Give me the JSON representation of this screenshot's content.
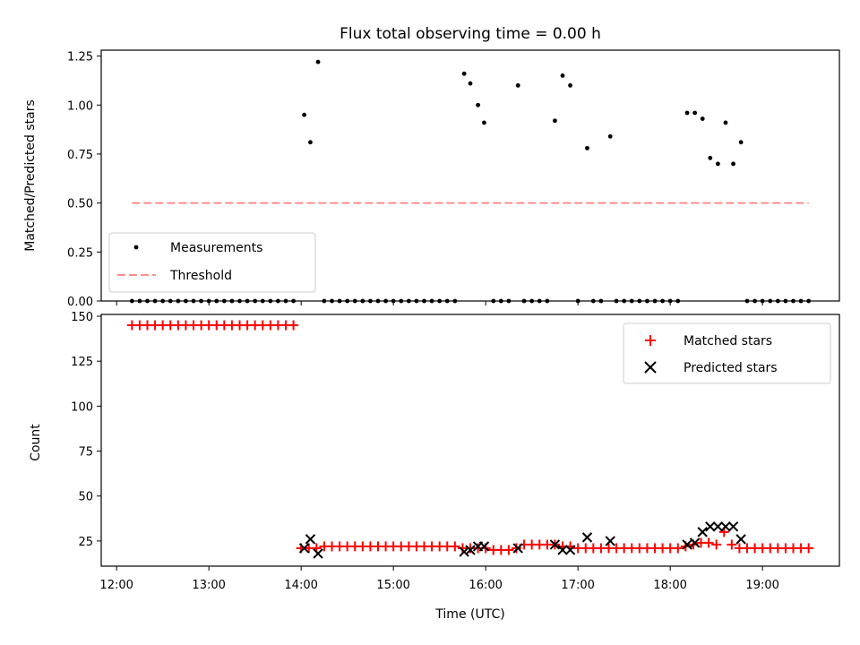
{
  "chart_data": {
    "type": "scatter",
    "title": "Flux total observing time = 0.00 h",
    "xlabel": "Time (UTC)",
    "x_tick_labels": [
      "12:00",
      "13:00",
      "14:00",
      "15:00",
      "16:00",
      "17:00",
      "18:00",
      "19:00"
    ],
    "xlim": [
      "11:50",
      "19:50"
    ],
    "top_panel": {
      "ylabel": "Matched/Predicted stars",
      "ylim": [
        0,
        1.28
      ],
      "y_ticks": [
        "0.00",
        "0.25",
        "0.50",
        "0.75",
        "1.00",
        "1.25"
      ],
      "legend_position": "lower-left",
      "threshold": {
        "name": "Threshold",
        "value": 0.5,
        "x_range": [
          "12:10",
          "19:30"
        ],
        "color": "#ff7f7f"
      },
      "measurements_name": "Measurements",
      "measurements": [
        [
          "12:10",
          0
        ],
        [
          "12:15",
          0
        ],
        [
          "12:20",
          0
        ],
        [
          "12:25",
          0
        ],
        [
          "12:30",
          0
        ],
        [
          "12:35",
          0
        ],
        [
          "12:40",
          0
        ],
        [
          "12:45",
          0
        ],
        [
          "12:50",
          0
        ],
        [
          "12:55",
          0
        ],
        [
          "13:00",
          0
        ],
        [
          "13:05",
          0
        ],
        [
          "13:10",
          0
        ],
        [
          "13:15",
          0
        ],
        [
          "13:20",
          0
        ],
        [
          "13:25",
          0
        ],
        [
          "13:30",
          0
        ],
        [
          "13:35",
          0
        ],
        [
          "13:40",
          0
        ],
        [
          "13:45",
          0
        ],
        [
          "13:50",
          0
        ],
        [
          "13:55",
          0
        ],
        [
          "14:02",
          0.95
        ],
        [
          "14:06",
          0.81
        ],
        [
          "14:11",
          1.22
        ],
        [
          "14:15",
          0
        ],
        [
          "14:20",
          0
        ],
        [
          "14:25",
          0
        ],
        [
          "14:30",
          0
        ],
        [
          "14:35",
          0
        ],
        [
          "14:40",
          0
        ],
        [
          "14:45",
          0
        ],
        [
          "14:50",
          0
        ],
        [
          "14:55",
          0
        ],
        [
          "15:00",
          0
        ],
        [
          "15:05",
          0
        ],
        [
          "15:10",
          0
        ],
        [
          "15:15",
          0
        ],
        [
          "15:20",
          0
        ],
        [
          "15:25",
          0
        ],
        [
          "15:30",
          0
        ],
        [
          "15:35",
          0
        ],
        [
          "15:40",
          0
        ],
        [
          "15:46",
          1.16
        ],
        [
          "15:50",
          1.11
        ],
        [
          "15:55",
          1.0
        ],
        [
          "15:59",
          0.91
        ],
        [
          "16:05",
          0
        ],
        [
          "16:10",
          0
        ],
        [
          "16:15",
          0
        ],
        [
          "16:21",
          1.1
        ],
        [
          "16:25",
          0
        ],
        [
          "16:30",
          0
        ],
        [
          "16:35",
          0
        ],
        [
          "16:40",
          0
        ],
        [
          "16:45",
          0.92
        ],
        [
          "16:50",
          1.15
        ],
        [
          "16:55",
          1.1
        ],
        [
          "17:00",
          0
        ],
        [
          "17:06",
          0.78
        ],
        [
          "17:10",
          0
        ],
        [
          "17:15",
          0
        ],
        [
          "17:21",
          0.84
        ],
        [
          "17:25",
          0
        ],
        [
          "17:30",
          0
        ],
        [
          "17:35",
          0
        ],
        [
          "17:40",
          0
        ],
        [
          "17:45",
          0
        ],
        [
          "17:50",
          0
        ],
        [
          "17:55",
          0
        ],
        [
          "18:00",
          0
        ],
        [
          "18:05",
          0
        ],
        [
          "18:11",
          0.96
        ],
        [
          "18:16",
          0.96
        ],
        [
          "18:21",
          0.93
        ],
        [
          "18:26",
          0.73
        ],
        [
          "18:31",
          0.7
        ],
        [
          "18:36",
          0.91
        ],
        [
          "18:41",
          0.7
        ],
        [
          "18:46",
          0.81
        ],
        [
          "18:50",
          0
        ],
        [
          "18:55",
          0
        ],
        [
          "19:00",
          0
        ],
        [
          "19:05",
          0
        ],
        [
          "19:10",
          0
        ],
        [
          "19:15",
          0
        ],
        [
          "19:20",
          0
        ],
        [
          "19:25",
          0
        ],
        [
          "19:30",
          0
        ]
      ]
    },
    "bottom_panel": {
      "ylabel": "Count",
      "ylim": [
        11,
        151
      ],
      "y_ticks": [
        "25",
        "50",
        "75",
        "100",
        "125",
        "150"
      ],
      "legend_position": "upper-right",
      "series": [
        {
          "name": "Matched stars",
          "marker": "plus",
          "color": "#ff0000",
          "points": [
            [
              "12:10",
              145
            ],
            [
              "12:15",
              145
            ],
            [
              "12:20",
              145
            ],
            [
              "12:25",
              145
            ],
            [
              "12:30",
              145
            ],
            [
              "12:35",
              145
            ],
            [
              "12:40",
              145
            ],
            [
              "12:45",
              145
            ],
            [
              "12:50",
              145
            ],
            [
              "12:55",
              145
            ],
            [
              "13:00",
              145
            ],
            [
              "13:05",
              145
            ],
            [
              "13:10",
              145
            ],
            [
              "13:15",
              145
            ],
            [
              "13:20",
              145
            ],
            [
              "13:25",
              145
            ],
            [
              "13:30",
              145
            ],
            [
              "13:35",
              145
            ],
            [
              "13:40",
              145
            ],
            [
              "13:45",
              145
            ],
            [
              "13:50",
              145
            ],
            [
              "13:55",
              145
            ],
            [
              "14:00",
              21
            ],
            [
              "14:05",
              21
            ],
            [
              "14:10",
              21
            ],
            [
              "14:15",
              22
            ],
            [
              "14:20",
              22
            ],
            [
              "14:25",
              22
            ],
            [
              "14:30",
              22
            ],
            [
              "14:35",
              22
            ],
            [
              "14:40",
              22
            ],
            [
              "14:45",
              22
            ],
            [
              "14:50",
              22
            ],
            [
              "14:55",
              22
            ],
            [
              "15:00",
              22
            ],
            [
              "15:05",
              22
            ],
            [
              "15:10",
              22
            ],
            [
              "15:15",
              22
            ],
            [
              "15:20",
              22
            ],
            [
              "15:25",
              22
            ],
            [
              "15:30",
              22
            ],
            [
              "15:35",
              22
            ],
            [
              "15:40",
              22
            ],
            [
              "15:45",
              21
            ],
            [
              "15:50",
              21
            ],
            [
              "15:55",
              21
            ],
            [
              "16:00",
              21
            ],
            [
              "16:05",
              20
            ],
            [
              "16:10",
              20
            ],
            [
              "16:15",
              20
            ],
            [
              "16:20",
              21
            ],
            [
              "16:25",
              23
            ],
            [
              "16:30",
              23
            ],
            [
              "16:35",
              23
            ],
            [
              "16:40",
              23
            ],
            [
              "16:45",
              23
            ],
            [
              "16:50",
              22
            ],
            [
              "16:55",
              22
            ],
            [
              "17:00",
              21
            ],
            [
              "17:05",
              21
            ],
            [
              "17:10",
              21
            ],
            [
              "17:15",
              21
            ],
            [
              "17:20",
              21
            ],
            [
              "17:25",
              21
            ],
            [
              "17:30",
              21
            ],
            [
              "17:35",
              21
            ],
            [
              "17:40",
              21
            ],
            [
              "17:45",
              21
            ],
            [
              "17:50",
              21
            ],
            [
              "17:55",
              21
            ],
            [
              "18:00",
              21
            ],
            [
              "18:05",
              21
            ],
            [
              "18:10",
              22
            ],
            [
              "18:15",
              23
            ],
            [
              "18:20",
              24
            ],
            [
              "18:25",
              24
            ],
            [
              "18:30",
              23
            ],
            [
              "18:35",
              30
            ],
            [
              "18:40",
              23
            ],
            [
              "18:45",
              21
            ],
            [
              "18:50",
              21
            ],
            [
              "18:55",
              21
            ],
            [
              "19:00",
              21
            ],
            [
              "19:05",
              21
            ],
            [
              "19:10",
              21
            ],
            [
              "19:15",
              21
            ],
            [
              "19:20",
              21
            ],
            [
              "19:25",
              21
            ],
            [
              "19:30",
              21
            ]
          ]
        },
        {
          "name": "Predicted stars",
          "marker": "x",
          "color": "#000000",
          "points": [
            [
              "14:02",
              21
            ],
            [
              "14:06",
              26
            ],
            [
              "14:11",
              18
            ],
            [
              "15:46",
              19
            ],
            [
              "15:50",
              20
            ],
            [
              "15:55",
              22
            ],
            [
              "15:59",
              22
            ],
            [
              "16:21",
              21
            ],
            [
              "16:45",
              23
            ],
            [
              "16:50",
              20
            ],
            [
              "16:55",
              20
            ],
            [
              "17:06",
              27
            ],
            [
              "17:21",
              25
            ],
            [
              "18:11",
              23
            ],
            [
              "18:16",
              24
            ],
            [
              "18:21",
              30
            ],
            [
              "18:26",
              33
            ],
            [
              "18:31",
              33
            ],
            [
              "18:36",
              33
            ],
            [
              "18:41",
              33
            ],
            [
              "18:46",
              26
            ]
          ]
        }
      ]
    }
  }
}
